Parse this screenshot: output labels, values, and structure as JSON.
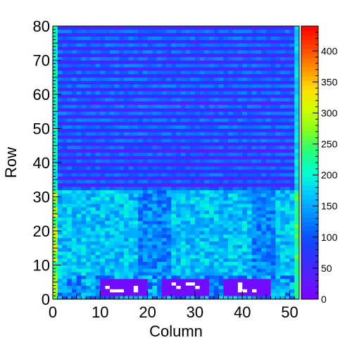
{
  "chart_data": {
    "type": "heatmap",
    "title": "",
    "xlabel": "Column",
    "ylabel": "Row",
    "xlim": [
      0,
      52
    ],
    "ylim": [
      0,
      80
    ],
    "x_ticks": [
      "0",
      "10",
      "20",
      "30",
      "40",
      "50"
    ],
    "y_ticks": [
      "0",
      "10",
      "20",
      "30",
      "40",
      "50",
      "60",
      "70",
      "80"
    ],
    "colorbar": {
      "range": [
        0,
        440
      ],
      "ticks": [
        "0",
        "50",
        "100",
        "150",
        "200",
        "250",
        "300",
        "350",
        "400"
      ],
      "palette": [
        "#8000ff",
        "#5a1cff",
        "#3030ff",
        "#0a50ff",
        "#0090ff",
        "#00c8ff",
        "#00ffd0",
        "#20ff80",
        "#80ff20",
        "#d0ff00",
        "#ffe000",
        "#ff9000",
        "#ff4000",
        "#ff0000"
      ]
    },
    "grid": false,
    "description_of_values": {
      "rows_0_to_6": "mostly ~140, with three purple blocks (~10) at columns 10-19, 23-32, 36-45 containing white (empty) pixels",
      "rows_7_to_31": "mostly cyan/green ~140-200, left edge column 0 near 220-320",
      "rows_32_to_79": "alternating bright/dark horizontal bands ~40-130, edges near 130-160"
    }
  }
}
